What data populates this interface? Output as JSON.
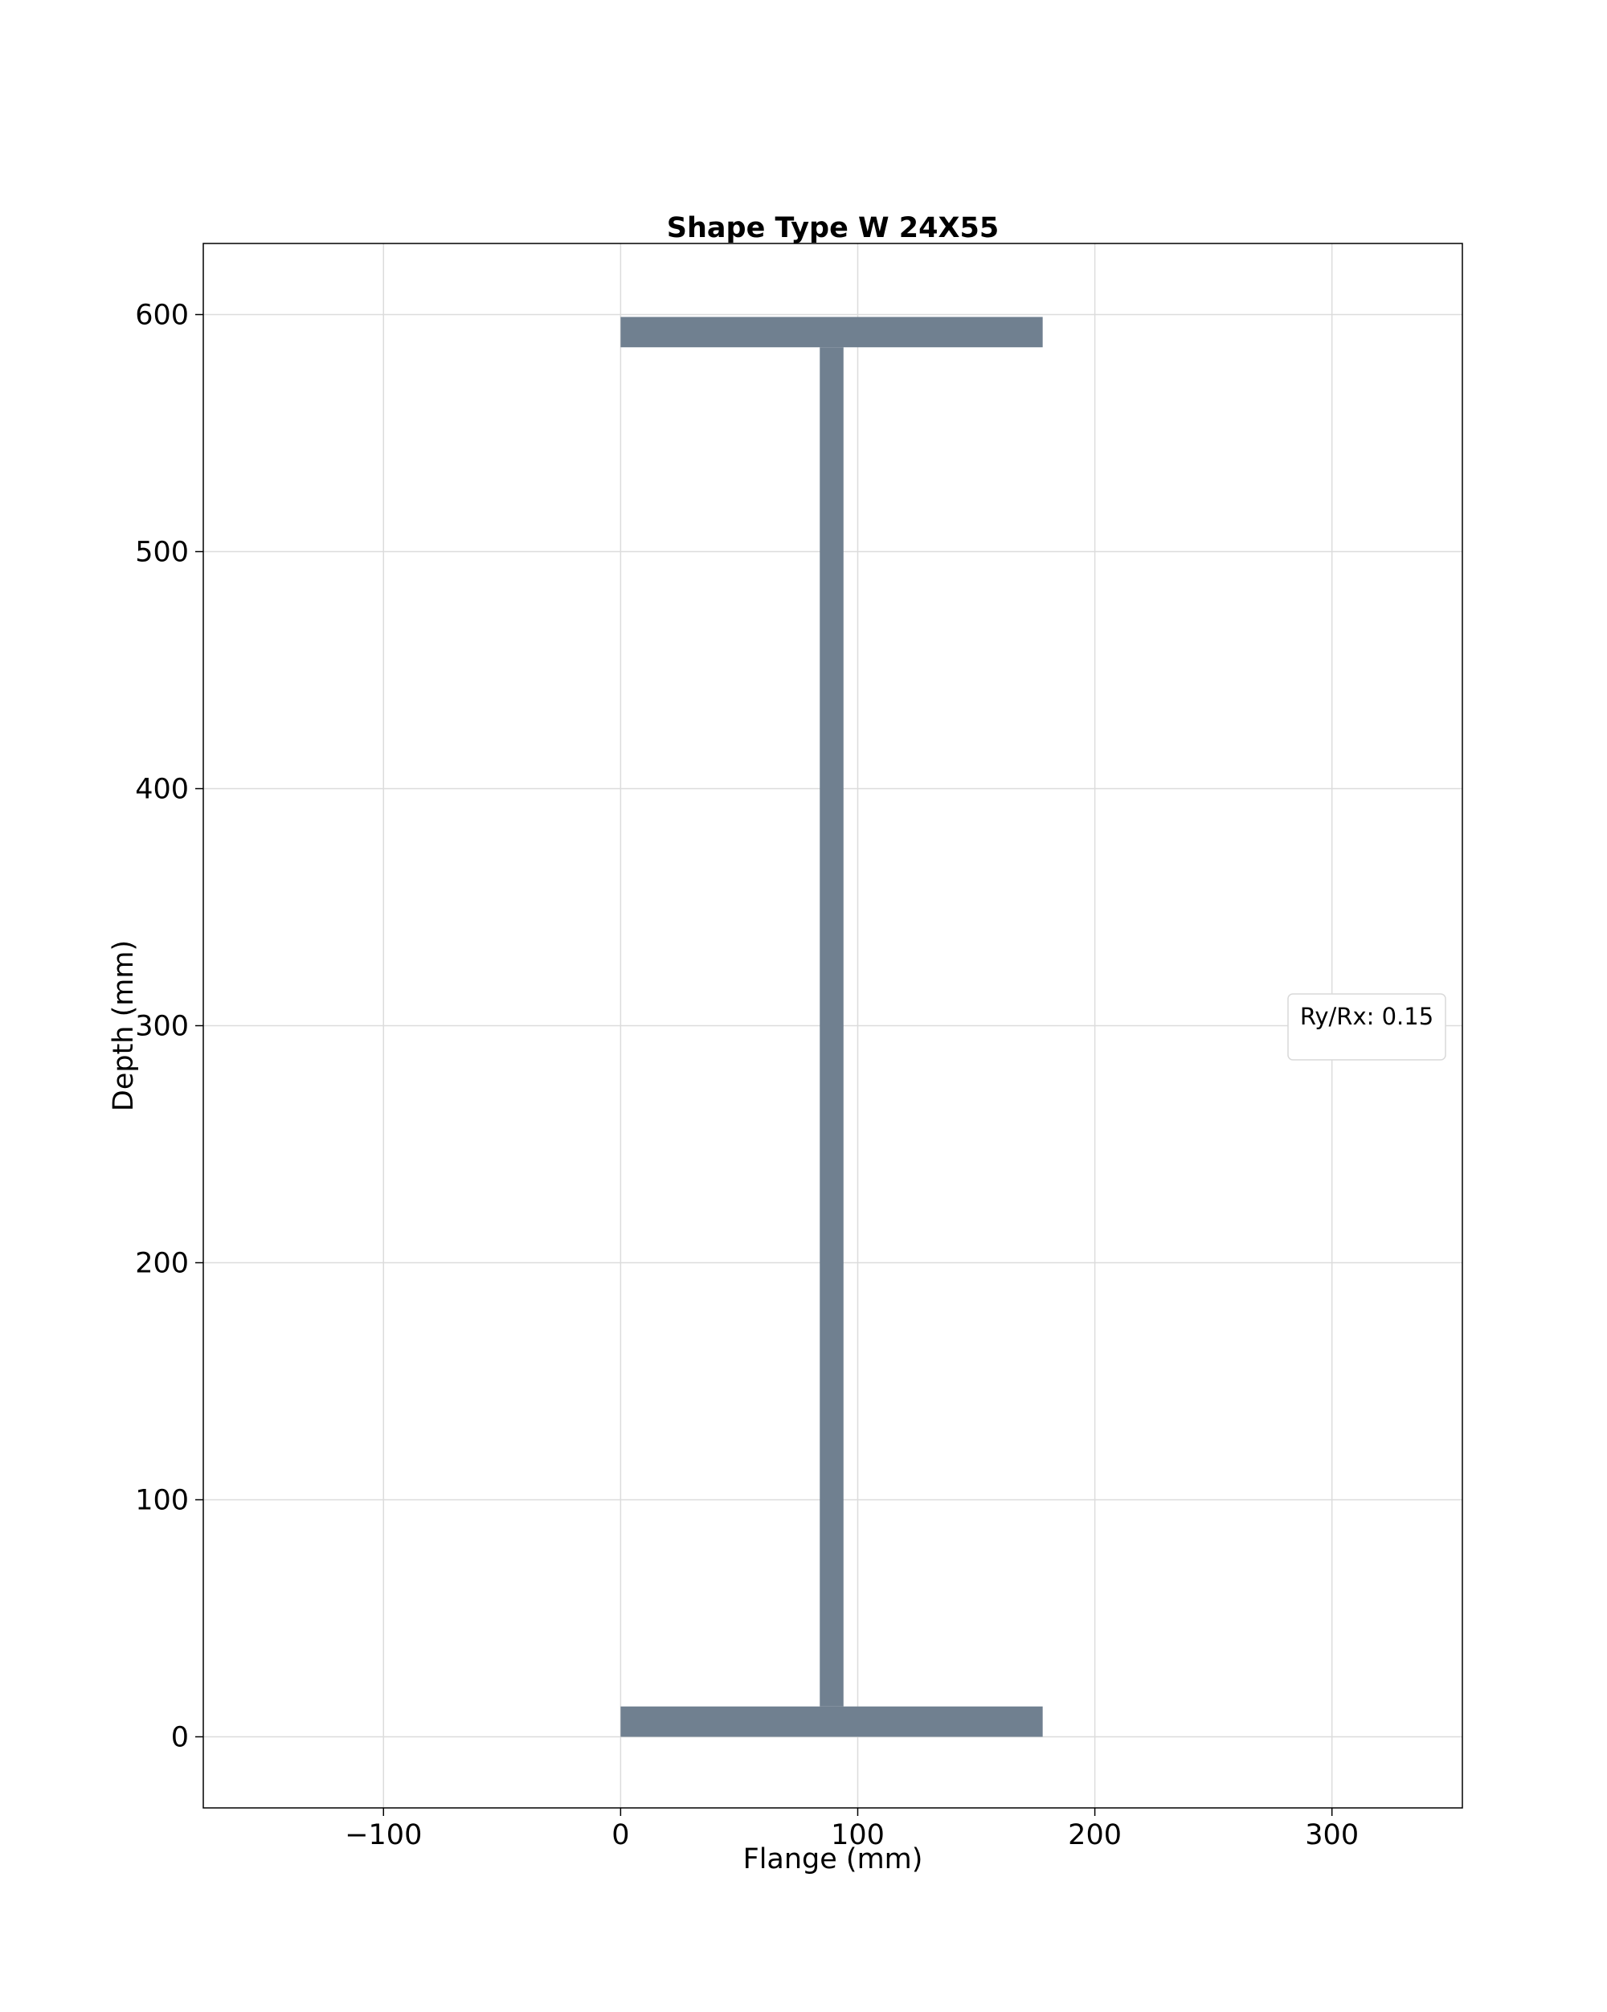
{
  "chart_data": {
    "type": "shape",
    "title": "Shape Type W 24X55",
    "xlabel": "Flange (mm)",
    "ylabel": "Depth (mm)",
    "xlim": [
      -176,
      355
    ],
    "ylim": [
      -30,
      630
    ],
    "xticks": [
      -100,
      0,
      100,
      200,
      300
    ],
    "xtick_labels": [
      "−100",
      "0",
      "100",
      "200",
      "300"
    ],
    "yticks": [
      0,
      100,
      200,
      300,
      400,
      500,
      600
    ],
    "ytick_labels": [
      "0",
      "100",
      "200",
      "300",
      "400",
      "500",
      "600"
    ],
    "grid": true,
    "legend_text": "Ry/Rx: 0.15",
    "legend_placement": "center-right",
    "shape_color": "#708090",
    "section": {
      "depth": 599,
      "flange_width": 178,
      "flange_thickness": 12.8,
      "web_thickness": 10
    }
  }
}
